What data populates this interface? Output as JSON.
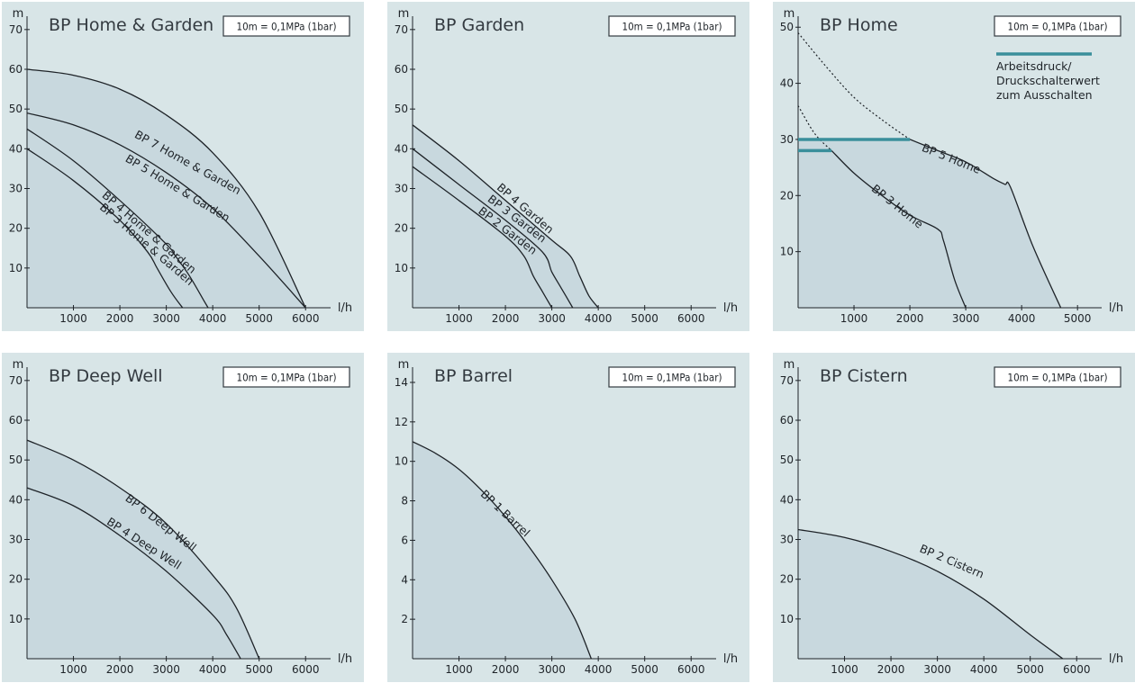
{
  "colors": {
    "panel_bg": "#d8e5e7",
    "area_fill": "#c8d8de",
    "ink": "#1e2328",
    "threshold": "#3a8f9b"
  },
  "chart_data": [
    {
      "type": "line",
      "title": "BP Home & Garden",
      "badge": "10m = 0,1MPa (1bar)",
      "ylabel": "m",
      "xlabel": "l/h",
      "xlim": [
        0,
        6500
      ],
      "ylim": [
        0,
        72
      ],
      "xticks": [
        1000,
        2000,
        3000,
        4000,
        5000,
        6000
      ],
      "yticks": [
        10,
        20,
        30,
        40,
        50,
        60,
        70
      ],
      "series": [
        {
          "name": "BP 7 Home & Garden",
          "x": [
            0,
            1000,
            2000,
            3000,
            4000,
            5000,
            6000
          ],
          "y": [
            60,
            58.5,
            55,
            48.5,
            39,
            24,
            0
          ]
        },
        {
          "name": "BP 5 Home & Garden",
          "x": [
            0,
            1000,
            2000,
            3000,
            4000,
            5000,
            6000
          ],
          "y": [
            49,
            46,
            41,
            34,
            25,
            13,
            0
          ]
        },
        {
          "name": "BP 4 Home & Garden",
          "x": [
            0,
            1000,
            2000,
            3000,
            3200,
            3500,
            3800,
            3900
          ],
          "y": [
            45,
            37,
            27,
            16,
            13,
            8,
            2,
            0
          ]
        },
        {
          "name": "BP 3 Home & Garden",
          "x": [
            0,
            1000,
            2000,
            2600,
            2800,
            3100,
            3350
          ],
          "y": [
            40,
            32,
            22,
            14,
            10,
            4,
            0
          ]
        }
      ],
      "label_pos": [
        [
          2300,
          43
        ],
        [
          2100,
          37
        ],
        [
          1600,
          28
        ],
        [
          1550,
          25
        ]
      ]
    },
    {
      "type": "line",
      "title": "BP Garden",
      "badge": "10m = 0,1MPa (1bar)",
      "ylabel": "m",
      "xlabel": "l/h",
      "xlim": [
        0,
        6500
      ],
      "ylim": [
        0,
        72
      ],
      "xticks": [
        1000,
        2000,
        3000,
        4000,
        5000,
        6000
      ],
      "yticks": [
        10,
        20,
        30,
        40,
        50,
        60,
        70
      ],
      "series": [
        {
          "name": "BP 4 Garden",
          "x": [
            0,
            1000,
            2000,
            3000,
            3400,
            3600,
            3800,
            4000
          ],
          "y": [
            46,
            37,
            27,
            17,
            13,
            8,
            3,
            0
          ]
        },
        {
          "name": "BP 3 Garden",
          "x": [
            0,
            1000,
            2000,
            2800,
            3000,
            3200,
            3450
          ],
          "y": [
            40,
            31,
            22,
            14,
            9,
            5,
            0
          ]
        },
        {
          "name": "BP 2 Garden",
          "x": [
            0,
            1000,
            2000,
            2400,
            2600,
            2800,
            3000
          ],
          "y": [
            35.5,
            27,
            18,
            13,
            8,
            4,
            0
          ]
        }
      ],
      "label_pos": [
        [
          1800,
          30
        ],
        [
          1600,
          27
        ],
        [
          1400,
          24
        ]
      ]
    },
    {
      "type": "line",
      "title": "BP Home",
      "badge": "10m = 0,1MPa (1bar)",
      "ylabel": "m",
      "xlabel": "l/h",
      "xlim": [
        0,
        5400
      ],
      "ylim": [
        0,
        51
      ],
      "xticks": [
        1000,
        2000,
        3000,
        4000,
        5000
      ],
      "yticks": [
        10,
        20,
        30,
        40,
        50
      ],
      "legend": {
        "label": "Arbeitsdruck/ Druckschalterwert zum Ausschalten",
        "lines": [
          "Arbeitsdruck/",
          "Druckschalterwert",
          "zum Ausschalten"
        ],
        "position": "top-right"
      },
      "series": [
        {
          "name": "BP 5 Home",
          "x": [
            0,
            500,
            1000,
            1500,
            2000,
            2500,
            3000,
            3500,
            3700,
            3800,
            4200,
            4700
          ],
          "y": [
            49,
            43,
            37.5,
            33.5,
            30,
            28,
            26,
            23,
            22,
            21.5,
            11,
            0
          ]
        },
        {
          "name": "BP 3 Home",
          "x": [
            0,
            300,
            600,
            1000,
            1500,
            2000,
            2500,
            2600,
            2800,
            3000
          ],
          "y": [
            36,
            31,
            28,
            24,
            20,
            16.5,
            14,
            12,
            5,
            0
          ]
        }
      ],
      "threshold": [
        {
          "y": 30,
          "x": [
            0,
            2000
          ]
        },
        {
          "y": 28,
          "x": [
            0,
            600
          ]
        }
      ],
      "dotted_until": [
        2000,
        600
      ],
      "label_pos": [
        [
          2200,
          28
        ],
        [
          1300,
          21
        ]
      ]
    },
    {
      "type": "line",
      "title": "BP Deep Well",
      "badge": "10m = 0,1MPa (1bar)",
      "ylabel": "m",
      "xlabel": "l/h",
      "xlim": [
        0,
        6500
      ],
      "ylim": [
        0,
        72
      ],
      "xticks": [
        1000,
        2000,
        3000,
        4000,
        5000,
        6000
      ],
      "yticks": [
        10,
        20,
        30,
        40,
        50,
        60,
        70
      ],
      "series": [
        {
          "name": "BP 6 Deep Well",
          "x": [
            0,
            1000,
            2000,
            3000,
            4000,
            4500,
            5000
          ],
          "y": [
            55,
            50,
            43,
            34,
            21,
            13,
            0
          ]
        },
        {
          "name": "BP 4 Deep Well",
          "x": [
            0,
            1000,
            2000,
            3000,
            4000,
            4300,
            4600
          ],
          "y": [
            43,
            38.5,
            31,
            22,
            11,
            6,
            0
          ]
        }
      ],
      "label_pos": [
        [
          2100,
          40
        ],
        [
          1700,
          34
        ]
      ]
    },
    {
      "type": "line",
      "title": "BP Barrel",
      "badge": "10m = 0,1MPa (1bar)",
      "ylabel": "m",
      "xlabel": "l/h",
      "xlim": [
        0,
        6500
      ],
      "ylim": [
        0,
        14.5
      ],
      "xticks": [
        1000,
        2000,
        3000,
        4000,
        5000,
        6000
      ],
      "yticks": [
        2,
        4,
        6,
        8,
        10,
        12,
        14
      ],
      "series": [
        {
          "name": "BP 1 Barrel",
          "x": [
            0,
            500,
            1000,
            1500,
            2000,
            2500,
            3000,
            3500,
            3850
          ],
          "y": [
            11,
            10.4,
            9.6,
            8.5,
            7.2,
            5.7,
            4,
            2,
            0
          ]
        }
      ],
      "label_pos": [
        [
          1450,
          8.3
        ]
      ]
    },
    {
      "type": "line",
      "title": "BP Cistern",
      "badge": "10m = 0,1MPa (1bar)",
      "ylabel": "m",
      "xlabel": "l/h",
      "xlim": [
        0,
        6500
      ],
      "ylim": [
        0,
        72
      ],
      "xticks": [
        1000,
        2000,
        3000,
        4000,
        5000,
        6000
      ],
      "yticks": [
        10,
        20,
        30,
        40,
        50,
        60,
        70
      ],
      "series": [
        {
          "name": "BP 2 Cistern",
          "x": [
            0,
            1000,
            2000,
            3000,
            4000,
            5000,
            5700
          ],
          "y": [
            32.5,
            30.5,
            27,
            22,
            15,
            6,
            0
          ]
        }
      ],
      "label_pos": [
        [
          2600,
          27
        ]
      ]
    }
  ]
}
